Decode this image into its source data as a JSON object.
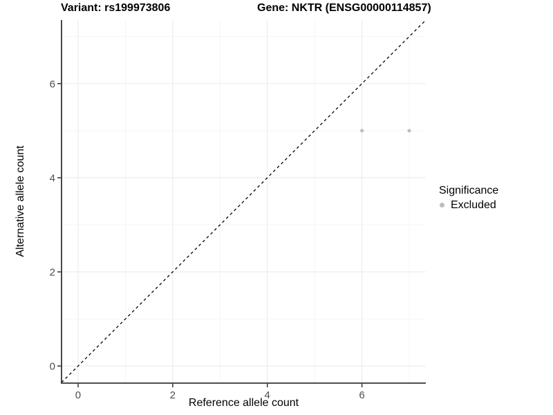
{
  "titles": {
    "variant": "Variant: rs199973806",
    "gene": "Gene: NKTR (ENSG00000114857)"
  },
  "chart_data": {
    "type": "scatter",
    "xlabel": "Reference allele count",
    "ylabel": "Alternative allele count",
    "xlim": [
      -0.35,
      7.35
    ],
    "ylim": [
      -0.35,
      7.35
    ],
    "x_major_ticks": [
      0,
      2,
      4,
      6
    ],
    "y_major_ticks": [
      0,
      2,
      4,
      6
    ],
    "x_minor_gridlines": [
      1,
      3,
      5,
      7
    ],
    "y_minor_gridlines": [
      1,
      3,
      5,
      7
    ],
    "grid": "on",
    "series": [
      {
        "name": "Excluded",
        "marker": "dot",
        "color": "#bdbdbd",
        "points": [
          [
            6,
            5
          ],
          [
            7,
            5
          ]
        ]
      }
    ],
    "reference_line": {
      "kind": "identity-diagonal",
      "linestyle": "dashed",
      "color": "#000000"
    },
    "legend": {
      "title": "Significance",
      "position": "right",
      "entries": [
        {
          "label": "Excluded",
          "marker_color": "#bdbdbd"
        }
      ]
    }
  },
  "colors": {
    "axis_line": "#333333",
    "tick_label": "#4d4d4d",
    "grid_major": "#ebebeb",
    "grid_minor": "#f2f2f2",
    "background": "#ffffff"
  }
}
